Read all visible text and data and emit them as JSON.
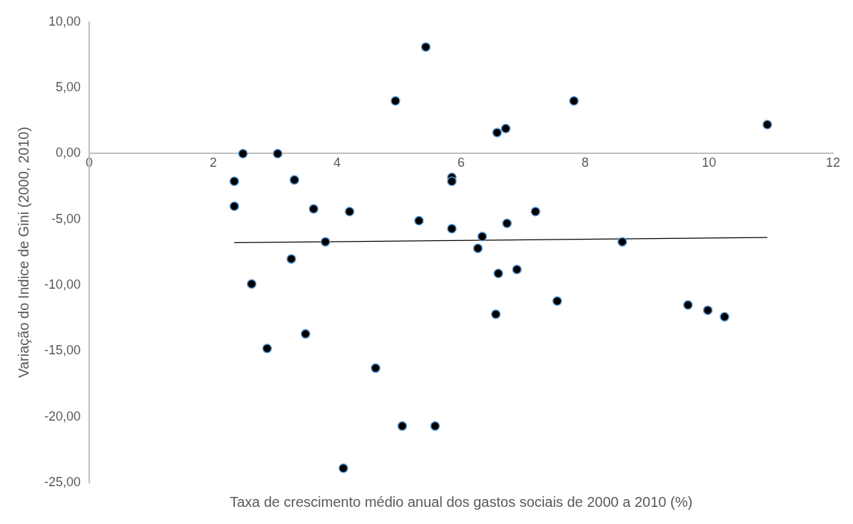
{
  "chart_data": {
    "type": "scatter",
    "xlabel": "Taxa de crescimento médio anual dos gastos sociais de 2000 a 2010 (%)",
    "ylabel": "Variação do Indice de Gini (2000, 2010)",
    "xlim": [
      0,
      12
    ],
    "xticks": [
      0,
      2,
      4,
      6,
      8,
      10,
      12
    ],
    "ylim": [
      -25,
      10
    ],
    "yticks": [
      {
        "value": -25,
        "label": "-25,00"
      },
      {
        "value": -20,
        "label": "-20,00"
      },
      {
        "value": -15,
        "label": "-15,00"
      },
      {
        "value": -10,
        "label": "-10,00"
      },
      {
        "value": -5,
        "label": "-5,00"
      },
      {
        "value": 0,
        "label": "0,00"
      },
      {
        "value": 5,
        "label": "5,00"
      },
      {
        "value": 10,
        "label": "10,00"
      }
    ],
    "grid": false,
    "legend": false,
    "marker": "circle",
    "series": [
      {
        "color": "#000000",
        "x": [
          2.34,
          2.34,
          2.48,
          2.62,
          2.87,
          3.04,
          3.26,
          3.31,
          3.49,
          3.62,
          3.81,
          4.1,
          4.2,
          4.62,
          4.94,
          5.05,
          5.32,
          5.43,
          5.58,
          5.85,
          5.85,
          5.85,
          6.27,
          6.34,
          6.58,
          6.56,
          6.6,
          6.72,
          6.74,
          6.9,
          7.2,
          7.55,
          7.82,
          8.6,
          9.66,
          9.98,
          10.25,
          10.94
        ],
        "values": [
          -2.1,
          -4.0,
          0,
          -9.9,
          -14.8,
          0,
          -8.0,
          -2.0,
          -13.7,
          -4.2,
          -6.7,
          -23.9,
          -4.4,
          -16.3,
          4.0,
          -20.7,
          -5.1,
          8.1,
          -20.7,
          -1.8,
          -2.1,
          -5.7,
          -7.2,
          -6.3,
          1.6,
          -12.2,
          -9.1,
          1.9,
          -5.3,
          -8.8,
          -4.4,
          -11.2,
          4.0,
          -6.7,
          -11.5,
          -11.9,
          -12.4,
          2.2
        ]
      },
      {
        "type": "line",
        "color": "#000000",
        "x": [
          2.34,
          10.94
        ],
        "values": [
          -6.77,
          -6.37
        ],
        "marker": "none"
      }
    ]
  }
}
